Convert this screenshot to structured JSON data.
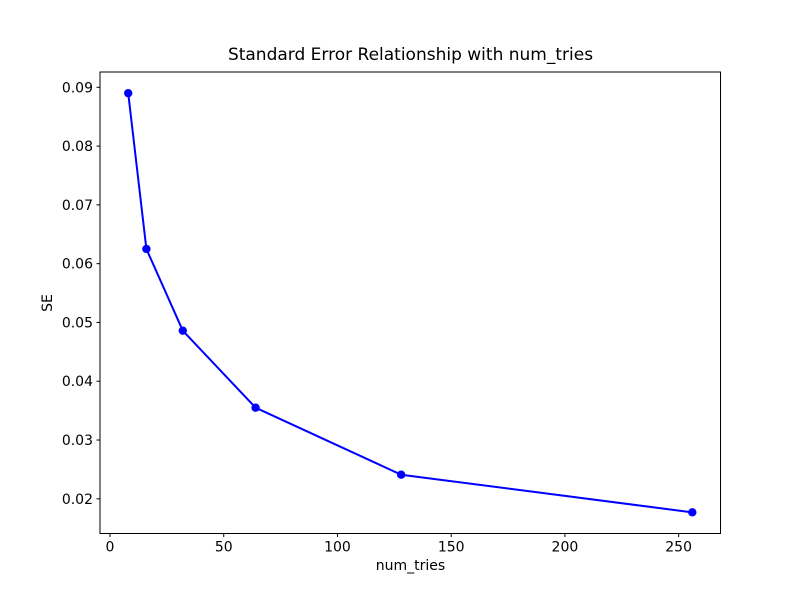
{
  "chart_data": {
    "type": "line",
    "title": "Standard Error Relationship with num_tries",
    "xlabel": "num_tries",
    "ylabel": "SE",
    "x": [
      8,
      16,
      32,
      64,
      128,
      256
    ],
    "y": [
      0.089,
      0.0625,
      0.0486,
      0.0355,
      0.0241,
      0.0177
    ],
    "xlim": [
      -4.4,
      268.4
    ],
    "ylim": [
      0.0141,
      0.0926
    ],
    "xticks": {
      "values": [
        0,
        50,
        100,
        150,
        200,
        250
      ],
      "labels": [
        "0",
        "50",
        "100",
        "150",
        "200",
        "250"
      ]
    },
    "yticks": {
      "values": [
        0.02,
        0.03,
        0.04,
        0.05,
        0.06,
        0.07,
        0.08,
        0.09
      ],
      "labels": [
        "0.02",
        "0.03",
        "0.04",
        "0.05",
        "0.06",
        "0.07",
        "0.08",
        "0.09"
      ]
    },
    "line_color": "#0000ff",
    "axis_color": "#000000",
    "marker": "o",
    "grid": false,
    "legend": false
  }
}
